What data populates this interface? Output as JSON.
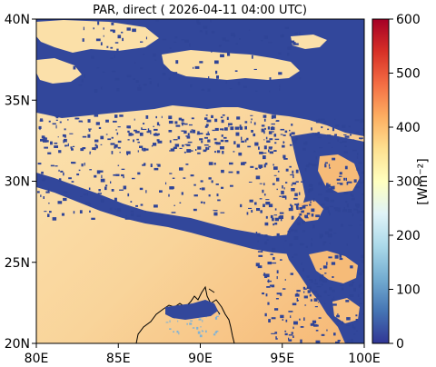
{
  "map": {
    "title": "PAR, direct ( 2026-04-11 04:00 UTC)",
    "x_ticks": [
      "80E",
      "85E",
      "90E",
      "95E",
      "100E"
    ],
    "y_ticks": [
      "40N",
      "35N",
      "30N",
      "25N",
      "20N"
    ],
    "extent": {
      "lon_min": 80,
      "lon_max": 100,
      "lat_min": 20,
      "lat_max": 40
    }
  },
  "colorbar": {
    "label": "[Wm⁻²]",
    "ticks": [
      "600",
      "500",
      "400",
      "300",
      "200",
      "100",
      "0"
    ],
    "range": [
      0,
      600
    ],
    "colormap": "RdYlBu_r",
    "colors": [
      "#313695",
      "#4575b4",
      "#74add1",
      "#abd9e9",
      "#e0f3f8",
      "#ffffbf",
      "#fee090",
      "#fdae61",
      "#f46d43",
      "#d73027",
      "#a50026"
    ]
  },
  "colors": {
    "sunny_low": "#fbe3ad",
    "sunny_high": "#f7bf7c",
    "cloud": "#32479b",
    "cloud_dark": "#2b3a8f",
    "coast": "#000000"
  }
}
